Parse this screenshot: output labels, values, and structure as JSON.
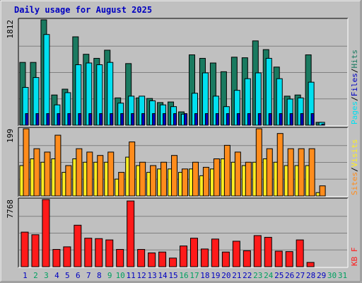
{
  "chart_data": {
    "title": "Daily usage for August 2025",
    "x": [
      "1",
      "2",
      "3",
      "4",
      "5",
      "6",
      "7",
      "8",
      "9",
      "10",
      "11",
      "12",
      "13",
      "14",
      "15",
      "16",
      "17",
      "18",
      "19",
      "20",
      "21",
      "22",
      "23",
      "24",
      "25",
      "26",
      "27",
      "28",
      "29",
      "30",
      "31"
    ],
    "weekend_days": [
      "2",
      "3",
      "9",
      "10",
      "16",
      "17",
      "23",
      "24",
      "30",
      "31"
    ],
    "panels": [
      {
        "type": "bar",
        "scale_label": "1812",
        "ylim": [
          0,
          1812
        ],
        "legend": [
          "Pages",
          "Files",
          "Hits"
        ],
        "series": [
          {
            "name": "Hits",
            "color": "#1a7a60",
            "values": [
              1080,
              1080,
              1812,
              520,
              620,
              1520,
              1220,
              1150,
              1290,
              470,
              1060,
              470,
              460,
              390,
              400,
              230,
              1210,
              1150,
              1070,
              920,
              1170,
              1160,
              1450,
              1300,
              1000,
              500,
              520,
              1210,
              50,
              0,
              0
            ]
          },
          {
            "name": "Files",
            "color": "#00e0f0",
            "values": [
              650,
              820,
              1560,
              350,
              560,
              1040,
              1070,
              1040,
              1080,
              380,
              500,
              500,
              420,
              350,
              320,
              190,
              550,
              900,
              500,
              320,
              600,
              800,
              900,
              1150,
              800,
              450,
              470,
              740,
              50,
              0,
              0
            ]
          },
          {
            "name": "Pages",
            "color": "#0000c0",
            "values": [
              200,
              200,
              200,
              200,
              200,
              200,
              200,
              200,
              200,
              200,
              200,
              200,
              200,
              200,
              200,
              200,
              200,
              200,
              200,
              200,
              200,
              200,
              200,
              200,
              200,
              200,
              200,
              200,
              20,
              0,
              0
            ]
          }
        ]
      },
      {
        "type": "bar",
        "scale_label": "199",
        "ylim": [
          0,
          199
        ],
        "legend": [
          "Sites",
          "Visits"
        ],
        "series": [
          {
            "name": "Visits",
            "color": "#ffee22",
            "values": [
              90,
              110,
              100,
              110,
              70,
              110,
              100,
              100,
              100,
              50,
              115,
              90,
              70,
              80,
              80,
              70,
              80,
              60,
              80,
              110,
              100,
              90,
              100,
              110,
              100,
              90,
              90,
              90,
              10,
              0,
              0
            ]
          },
          {
            "name": "Sites",
            "color": "#ff8c1c",
            "values": [
              199,
              140,
              130,
              180,
              90,
              140,
              130,
              120,
              130,
              70,
              160,
              100,
              90,
              100,
              120,
              80,
              100,
              85,
              110,
              150,
              130,
              100,
              199,
              140,
              185,
              140,
              140,
              140,
              30,
              0,
              0
            ]
          }
        ]
      },
      {
        "type": "bar",
        "scale_label": "7768",
        "ylim": [
          0,
          7768
        ],
        "legend": [
          "KB F"
        ],
        "series": [
          {
            "name": "KB F",
            "color": "#ff1a1a",
            "values": [
              4000,
              3700,
              7768,
              2000,
              2300,
              4800,
              3300,
              3250,
              3100,
              2000,
              7600,
              2000,
              1600,
              1700,
              1000,
              2400,
              3300,
              2050,
              3200,
              1700,
              2950,
              1850,
              3600,
              3400,
              1800,
              1750,
              3100,
              500,
              0,
              0,
              0
            ]
          }
        ]
      }
    ]
  },
  "colors": {
    "background": "#c0c0c0",
    "plot_background": "#c0c0c0",
    "title": "#0000c0",
    "weekday_label": "#0000c0",
    "weekend_label": "#00a060",
    "gridline": "#808080",
    "bar_outline": "#000000"
  }
}
